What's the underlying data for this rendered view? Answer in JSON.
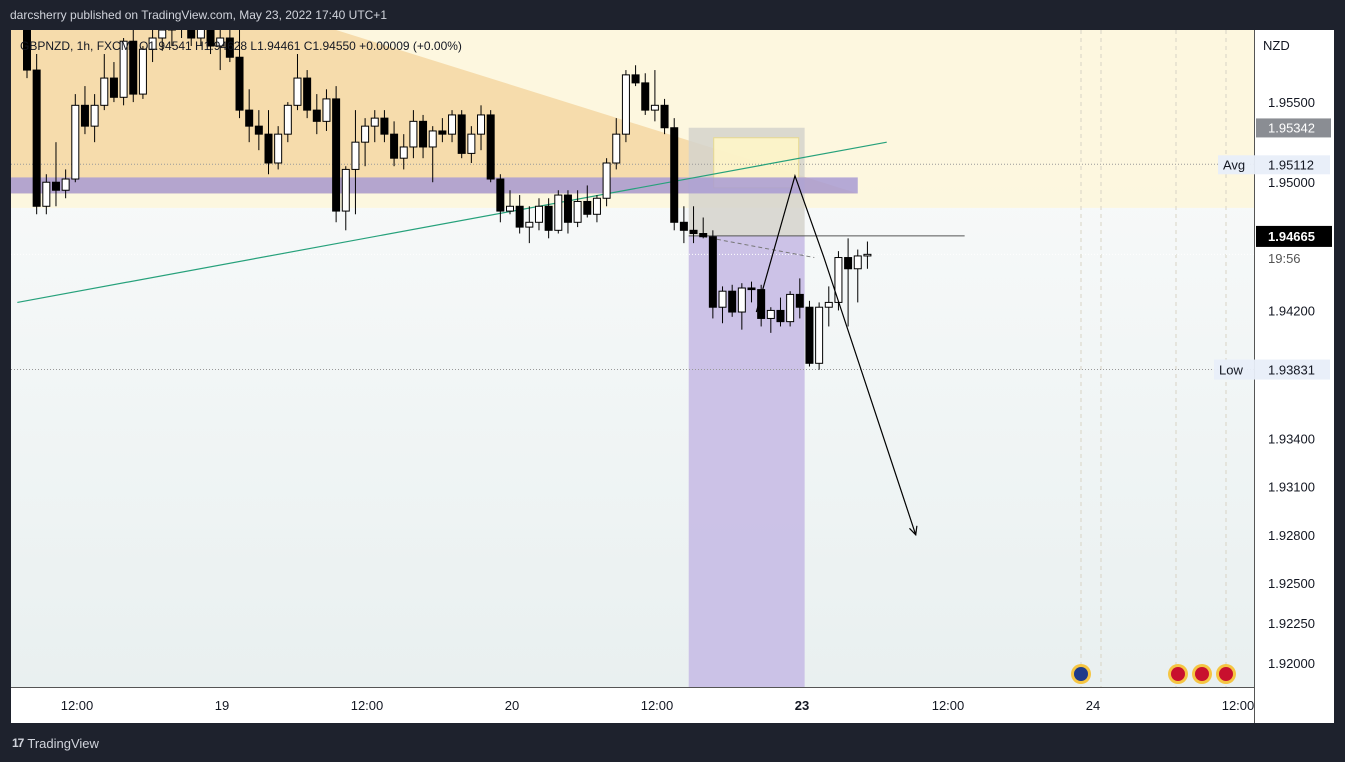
{
  "header": {
    "published": "darcsherry published on TradingView.com, May 23, 2022 17:40 UTC+1"
  },
  "legend": {
    "symbol": "GBPNZD, 1h, FXCM",
    "ohlc": "O1.94541 H1.94628 L1.94461 C1.94550 +0.00009 (+0.00%)"
  },
  "footer": {
    "logo": "17",
    "brand": "TradingView"
  },
  "colors": {
    "up_candle": "#ffffff",
    "down_candle": "#000000",
    "supply_zone": "#f5d7a3",
    "band": "#a89bd4",
    "short_target": "#c9bfe6",
    "stop_zone": "#d5d3cc",
    "trendline": "#26a17b"
  },
  "chart_data": {
    "type": "candlestick",
    "symbol": "GBPNZD",
    "timeframe": "1h",
    "currency": "NZD",
    "ylim": [
      1.9185,
      1.9595
    ],
    "y_ticks": [
      1.955,
      1.95,
      1.942,
      1.934,
      1.931,
      1.928,
      1.925,
      1.9225,
      1.92
    ],
    "x_ticks": [
      "12:00",
      "19",
      "12:00",
      "20",
      "12:00",
      "23",
      "12:00",
      "24",
      "12:00"
    ],
    "price_labels": [
      {
        "label": "",
        "value": 1.95342
      },
      {
        "label": "Avg",
        "value": 1.95112
      },
      {
        "label": "",
        "value": 1.94665,
        "countdown": "19:56"
      },
      {
        "label": "Low",
        "value": 1.93831
      }
    ],
    "last": {
      "open": 1.94541,
      "high": 1.94628,
      "low": 1.94461,
      "close": 1.9455,
      "change": 9e-05,
      "change_pct": 0.0
    },
    "candles": [
      [
        1.9595,
        1.96,
        1.9565,
        1.957
      ],
      [
        1.957,
        1.958,
        1.948,
        1.9485
      ],
      [
        1.9485,
        1.9505,
        1.948,
        1.95
      ],
      [
        1.95,
        1.9525,
        1.9485,
        1.9495
      ],
      [
        1.9495,
        1.9508,
        1.949,
        1.9502
      ],
      [
        1.9502,
        1.9555,
        1.95,
        1.9548
      ],
      [
        1.9548,
        1.956,
        1.953,
        1.9535
      ],
      [
        1.9535,
        1.9555,
        1.9525,
        1.9548
      ],
      [
        1.9548,
        1.958,
        1.9545,
        1.9565
      ],
      [
        1.9565,
        1.9575,
        1.955,
        1.9553
      ],
      [
        1.9553,
        1.959,
        1.9548,
        1.9588
      ],
      [
        1.9588,
        1.9595,
        1.955,
        1.9555
      ],
      [
        1.9555,
        1.9585,
        1.9552,
        1.9583
      ],
      [
        1.9583,
        1.9595,
        1.9575,
        1.959
      ],
      [
        1.959,
        1.9598,
        1.9582,
        1.9595
      ],
      [
        1.9595,
        1.96,
        1.9585,
        1.9597
      ],
      [
        1.9597,
        1.96,
        1.959,
        1.9598
      ],
      [
        1.9598,
        1.96,
        1.9585,
        1.959
      ],
      [
        1.959,
        1.96,
        1.9585,
        1.9598
      ],
      [
        1.9598,
        1.96,
        1.958,
        1.9585
      ],
      [
        1.9585,
        1.96,
        1.957,
        1.959
      ],
      [
        1.959,
        1.96,
        1.9575,
        1.9578
      ],
      [
        1.9578,
        1.96,
        1.954,
        1.9545
      ],
      [
        1.9545,
        1.9558,
        1.9525,
        1.9535
      ],
      [
        1.9535,
        1.9545,
        1.952,
        1.953
      ],
      [
        1.953,
        1.9545,
        1.9505,
        1.9512
      ],
      [
        1.9512,
        1.9535,
        1.9508,
        1.953
      ],
      [
        1.953,
        1.955,
        1.9525,
        1.9548
      ],
      [
        1.9548,
        1.958,
        1.9545,
        1.9565
      ],
      [
        1.9565,
        1.957,
        1.954,
        1.9545
      ],
      [
        1.9545,
        1.9555,
        1.953,
        1.9538
      ],
      [
        1.9538,
        1.9558,
        1.9532,
        1.9552
      ],
      [
        1.9552,
        1.956,
        1.9475,
        1.9482
      ],
      [
        1.9482,
        1.951,
        1.947,
        1.9508
      ],
      [
        1.9508,
        1.9545,
        1.948,
        1.9525
      ],
      [
        1.9525,
        1.954,
        1.951,
        1.9535
      ],
      [
        1.9535,
        1.9545,
        1.9525,
        1.954
      ],
      [
        1.954,
        1.9545,
        1.9525,
        1.953
      ],
      [
        1.953,
        1.9538,
        1.951,
        1.9515
      ],
      [
        1.9515,
        1.953,
        1.9508,
        1.9522
      ],
      [
        1.9522,
        1.9545,
        1.9515,
        1.9538
      ],
      [
        1.9538,
        1.9542,
        1.9515,
        1.9522
      ],
      [
        1.9522,
        1.9535,
        1.95,
        1.9532
      ],
      [
        1.9532,
        1.954,
        1.9525,
        1.953
      ],
      [
        1.953,
        1.9545,
        1.9525,
        1.9542
      ],
      [
        1.9542,
        1.9545,
        1.9515,
        1.9518
      ],
      [
        1.9518,
        1.9535,
        1.9512,
        1.953
      ],
      [
        1.953,
        1.9548,
        1.952,
        1.9542
      ],
      [
        1.9542,
        1.9545,
        1.95,
        1.9502
      ],
      [
        1.9502,
        1.9505,
        1.9475,
        1.9482
      ],
      [
        1.9482,
        1.9495,
        1.948,
        1.9485
      ],
      [
        1.9485,
        1.9492,
        1.9468,
        1.9472
      ],
      [
        1.9472,
        1.9485,
        1.9462,
        1.9475
      ],
      [
        1.9475,
        1.949,
        1.947,
        1.9485
      ],
      [
        1.9485,
        1.949,
        1.9465,
        1.947
      ],
      [
        1.947,
        1.9495,
        1.9468,
        1.9492
      ],
      [
        1.9492,
        1.9495,
        1.9468,
        1.9475
      ],
      [
        1.9475,
        1.9495,
        1.9472,
        1.9488
      ],
      [
        1.9488,
        1.9498,
        1.9478,
        1.948
      ],
      [
        1.948,
        1.9492,
        1.9475,
        1.949
      ],
      [
        1.949,
        1.9515,
        1.9485,
        1.9512
      ],
      [
        1.9512,
        1.954,
        1.9508,
        1.953
      ],
      [
        1.953,
        1.957,
        1.9525,
        1.9567
      ],
      [
        1.9567,
        1.9573,
        1.956,
        1.9562
      ],
      [
        1.9562,
        1.9568,
        1.9542,
        1.9545
      ],
      [
        1.9545,
        1.957,
        1.9538,
        1.9548
      ],
      [
        1.9548,
        1.9552,
        1.953,
        1.9534
      ],
      [
        1.9534,
        1.954,
        1.947,
        1.9475
      ],
      [
        1.9475,
        1.9485,
        1.9462,
        1.947
      ],
      [
        1.947,
        1.9485,
        1.9462,
        1.9468
      ],
      [
        1.9468,
        1.9478,
        1.9465,
        1.9466
      ],
      [
        1.9466,
        1.947,
        1.9415,
        1.9422
      ],
      [
        1.9422,
        1.9435,
        1.9412,
        1.9432
      ],
      [
        1.9432,
        1.9436,
        1.9416,
        1.9419
      ],
      [
        1.9419,
        1.9437,
        1.9408,
        1.9434
      ],
      [
        1.9434,
        1.9438,
        1.9425,
        1.9433
      ],
      [
        1.9433,
        1.9436,
        1.941,
        1.9415
      ],
      [
        1.9415,
        1.9422,
        1.9406,
        1.942
      ],
      [
        1.942,
        1.9428,
        1.941,
        1.9413
      ],
      [
        1.9413,
        1.9432,
        1.941,
        1.943
      ],
      [
        1.943,
        1.944,
        1.9415,
        1.9422
      ],
      [
        1.9422,
        1.9426,
        1.9385,
        1.9387
      ],
      [
        1.9387,
        1.9425,
        1.9383,
        1.9422
      ],
      [
        1.9422,
        1.9435,
        1.941,
        1.9425
      ],
      [
        1.9425,
        1.9457,
        1.942,
        1.9453
      ],
      [
        1.9453,
        1.9465,
        1.941,
        1.9446
      ],
      [
        1.9446,
        1.9458,
        1.9425,
        1.9454
      ],
      [
        1.9454,
        1.9463,
        1.9446,
        1.9455
      ]
    ],
    "annotations": {
      "trendline": [
        [
          -1,
          1.9425
        ],
        [
          89,
          1.9525
        ]
      ],
      "purple_band": [
        1.9493,
        1.9503
      ],
      "supply_zone_bottom": 1.9484,
      "short_position": {
        "entry": 1.94665,
        "stop": 1.9534,
        "target": 1.9185,
        "from_index": 68.5,
        "to_index": 80.5
      },
      "projection_path": [
        [
          75.5,
          1.9419
        ],
        [
          79.5,
          1.9504
        ],
        [
          82.5,
          1.9453
        ],
        [
          92.0,
          1.928
        ]
      ]
    }
  }
}
